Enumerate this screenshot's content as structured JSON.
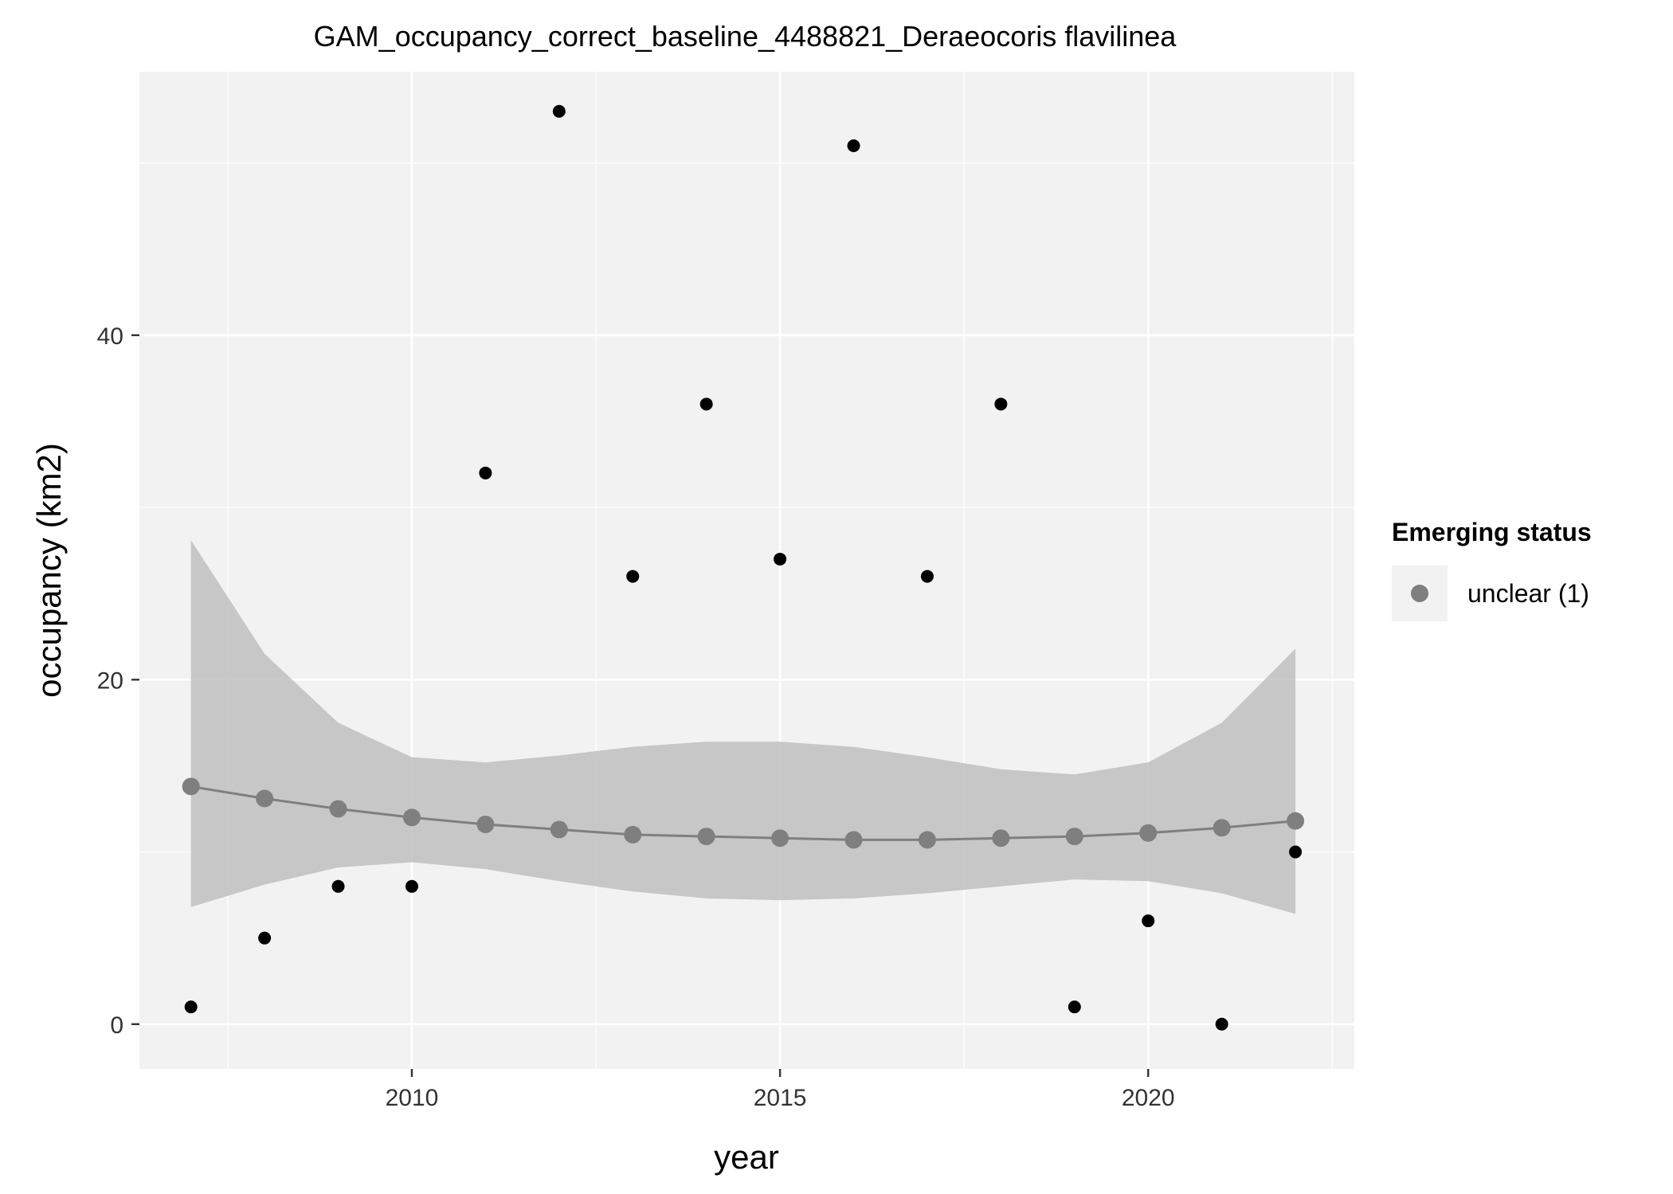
{
  "chart_data": {
    "type": "scatter",
    "title": "GAM_occupancy_correct_baseline_4488821_Deraeocoris flavilinea",
    "xlabel": "year",
    "ylabel": "occupancy (km2)",
    "xlim": [
      2006.3,
      2022.8
    ],
    "ylim": [
      -2.6,
      55.3
    ],
    "x_major_ticks": [
      2010,
      2015,
      2020
    ],
    "x_tick_labels": [
      "2010",
      "2015",
      "2020"
    ],
    "y_major_ticks": [
      0,
      20,
      40
    ],
    "y_tick_labels": [
      "0",
      "20",
      "40"
    ],
    "grid": true,
    "legend": {
      "title": "Emerging status",
      "position": "right",
      "entries": [
        {
          "label": "unclear (1)",
          "color": "#7f7f7f"
        }
      ]
    },
    "colors": {
      "panel_background": "#f2f2f2",
      "grid": "#ffffff",
      "observed_points": "#000000",
      "fit": "#7f7f7f",
      "ribbon": "#bfbfbf"
    },
    "series": [
      {
        "kind": "observed",
        "x": [
          2007,
          2008,
          2009,
          2010,
          2011,
          2012,
          2013,
          2014,
          2015,
          2016,
          2017,
          2018,
          2019,
          2020,
          2021,
          2022
        ],
        "y": [
          1,
          5,
          8,
          8,
          32,
          53,
          26,
          36,
          27,
          51,
          26,
          36,
          1,
          6,
          0,
          10
        ]
      },
      {
        "kind": "fit",
        "name": "unclear (1)",
        "x": [
          2007,
          2008,
          2009,
          2010,
          2011,
          2012,
          2013,
          2014,
          2015,
          2016,
          2017,
          2018,
          2019,
          2020,
          2021,
          2022
        ],
        "y": [
          13.8,
          13.1,
          12.5,
          12.0,
          11.6,
          11.3,
          11.0,
          10.9,
          10.8,
          10.7,
          10.7,
          10.8,
          10.9,
          11.1,
          11.4,
          11.8
        ],
        "lower": [
          6.8,
          8.1,
          9.1,
          9.4,
          9.0,
          8.3,
          7.7,
          7.3,
          7.2,
          7.3,
          7.6,
          8.0,
          8.4,
          8.3,
          7.6,
          6.4
        ],
        "upper": [
          28.1,
          21.5,
          17.5,
          15.5,
          15.2,
          15.6,
          16.1,
          16.4,
          16.4,
          16.1,
          15.5,
          14.8,
          14.5,
          15.2,
          17.5,
          21.8
        ]
      }
    ]
  }
}
